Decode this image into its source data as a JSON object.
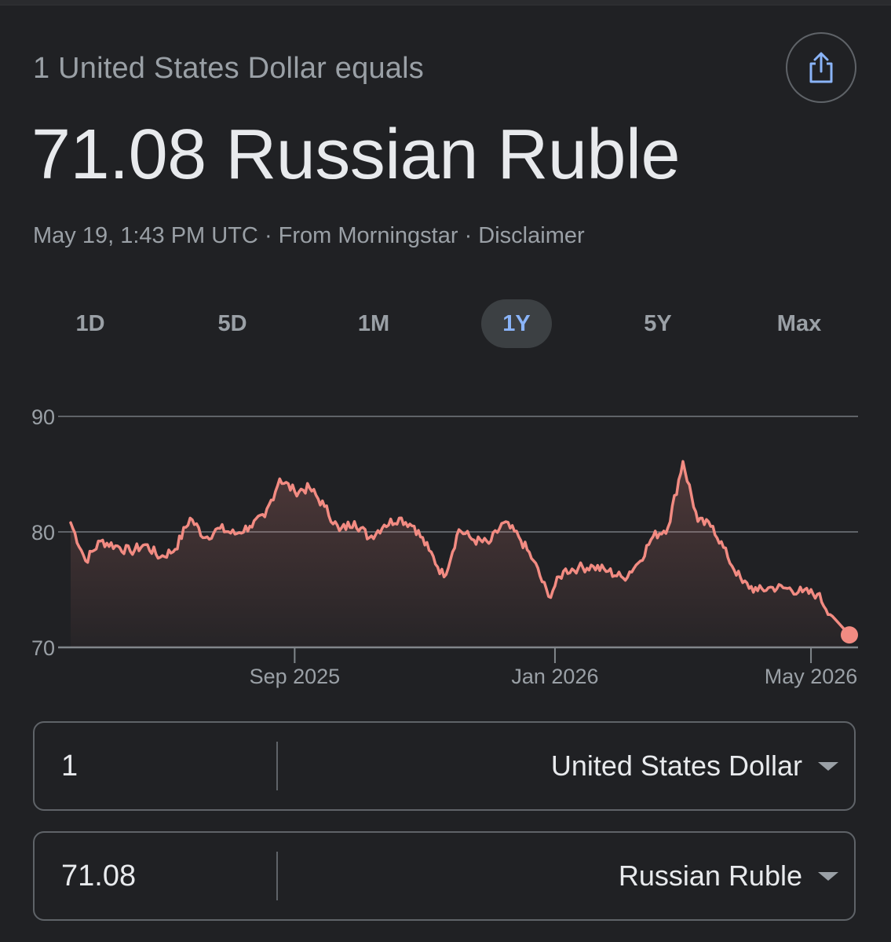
{
  "header": {
    "equals_label": "1 United States Dollar equals",
    "main_value": "71.08 Russian Ruble",
    "meta": {
      "timestamp": "May 19, 1:43 PM UTC",
      "separator": "·",
      "source": "From Morningstar",
      "disclaimer": "Disclaimer"
    },
    "share_icon": "share-icon"
  },
  "range_tabs": [
    {
      "label": "1D",
      "active": false
    },
    {
      "label": "5D",
      "active": false
    },
    {
      "label": "1M",
      "active": false
    },
    {
      "label": "1Y",
      "active": true
    },
    {
      "label": "5Y",
      "active": false
    },
    {
      "label": "Max",
      "active": false
    }
  ],
  "colors": {
    "background": "#202124",
    "line": "#f28b82",
    "grid": "#5f6368",
    "text_primary": "#e8eaed",
    "text_secondary": "#9aa0a6",
    "accent": "#8ab4f8",
    "active_tab_bg": "#3c4043"
  },
  "chart_data": {
    "type": "line",
    "ylim": [
      70,
      90
    ],
    "y_ticks": [
      "90",
      "80",
      "70"
    ],
    "x_ticks": [
      {
        "label": "Sep 2025",
        "date": "2025-09-01"
      },
      {
        "label": "Jan 2026",
        "date": "2026-01-01"
      },
      {
        "label": "May 2026",
        "date": "2026-05-01"
      }
    ],
    "grid": true,
    "series": [
      {
        "x": [
          "2025-05-19",
          "2025-05-26",
          "2025-06-02",
          "2025-06-09",
          "2025-06-16",
          "2025-06-23",
          "2025-06-30",
          "2025-07-07",
          "2025-07-14",
          "2025-07-21",
          "2025-07-28",
          "2025-08-04",
          "2025-08-11",
          "2025-08-18",
          "2025-08-25",
          "2025-09-01",
          "2025-09-08",
          "2025-09-15",
          "2025-09-22",
          "2025-09-29",
          "2025-10-06",
          "2025-10-13",
          "2025-10-20",
          "2025-10-27",
          "2025-11-03",
          "2025-11-10",
          "2025-11-17",
          "2025-11-24",
          "2025-12-01",
          "2025-12-08",
          "2025-12-15",
          "2025-12-22",
          "2025-12-29",
          "2026-01-05",
          "2026-01-12",
          "2026-01-19",
          "2026-01-26",
          "2026-02-02",
          "2026-02-09",
          "2026-02-16",
          "2026-02-23",
          "2026-03-02",
          "2026-03-09",
          "2026-03-16",
          "2026-03-23",
          "2026-03-30",
          "2026-04-06",
          "2026-04-13",
          "2026-04-20",
          "2026-04-27",
          "2026-05-04",
          "2026-05-11",
          "2026-05-19"
        ],
        "values": [
          80.8,
          77.5,
          79.2,
          78.8,
          78.3,
          78.9,
          77.8,
          78.5,
          81.2,
          79.5,
          80.3,
          79.8,
          80.5,
          81.3,
          84.6,
          83.5,
          83.8,
          82.2,
          80.1,
          80.9,
          79.5,
          80.6,
          81.2,
          80.5,
          78.4,
          76.1,
          80.2,
          79.3,
          79.0,
          80.8,
          79.6,
          77.5,
          74.4,
          76.6,
          76.9,
          77.0,
          76.6,
          76.0,
          77.3,
          79.6,
          80.4,
          86.1,
          80.9,
          80.5,
          77.8,
          75.6,
          74.9,
          75.2,
          75.1,
          74.8,
          74.6,
          72.7,
          71.08
        ]
      }
    ]
  },
  "converter": {
    "from": {
      "amount": "1",
      "currency": "United States Dollar"
    },
    "to": {
      "amount": "71.08",
      "currency": "Russian Ruble"
    }
  }
}
